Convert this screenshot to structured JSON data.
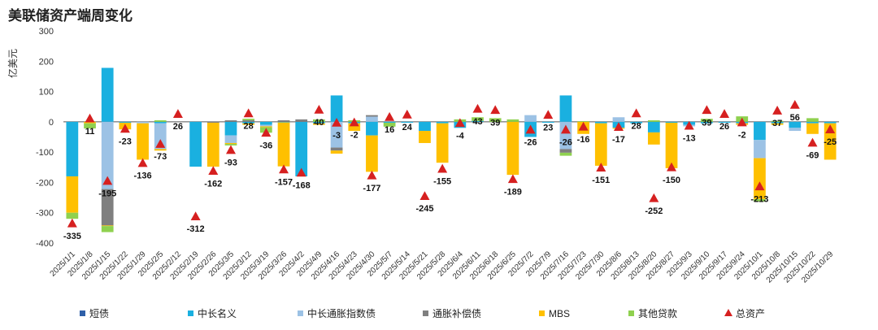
{
  "chart_data": {
    "type": "bar",
    "title": "美联储资产端周变化",
    "ylabel": "亿美元",
    "ylim": [
      -400,
      300
    ],
    "yticks": [
      300,
      200,
      100,
      0,
      -100,
      -200,
      -300,
      -400
    ],
    "grid": false,
    "legend_position": "bottom",
    "stacked": true,
    "categories": [
      "2025/1/1",
      "2025/1/8",
      "2025/1/15",
      "2025/1/22",
      "2025/1/29",
      "2025/2/5",
      "2025/2/12",
      "2025/2/19",
      "2025/2/26",
      "2025/3/5",
      "2025/3/12",
      "2025/3/19",
      "2025/3/26",
      "2025/4/2",
      "2025/4/9",
      "2025/4/16",
      "2025/4/23",
      "2025/4/30",
      "2025/5/7",
      "2025/5/14",
      "2025/5/21",
      "2025/5/28",
      "2025/6/4",
      "2025/6/11",
      "2025/6/18",
      "2025/6/25",
      "2025/7/2",
      "2025/7/9",
      "2025/7/16",
      "2025/7/23",
      "2025/7/30",
      "2025/8/6",
      "2025/8/13",
      "2025/8/20",
      "2025/8/27",
      "2025/9/3",
      "2025/9/10",
      "2025/9/17",
      "2025/9/24",
      "2025/10/1",
      "2025/10/8",
      "2025/10/15",
      "2025/10/22",
      "2025/10/29"
    ],
    "xtick_labels": [
      "2025/1/1",
      "2025/1/8",
      "2025/1/15",
      "2025/1/22",
      "2025/1/29",
      "2025/2/5",
      "2025/2/12",
      "2025/2/19",
      "2025/2/26",
      "2025/3/5",
      "2025/3/12",
      "2025/3/19",
      "2025/3/26",
      "2025/4/2",
      "2025/4/9",
      "2025/4/16",
      "2025/4/23",
      "2025/4/30",
      "2025/5/7",
      "2025/5/14",
      "2025/5/21",
      "2025/5/28",
      "2025/6/4",
      "2025/6/11",
      "2025/6/18",
      "2025/6/25",
      "2025/7/2",
      "2025/7/9",
      "2025/7/16",
      "2025/7/23",
      "2025/7/30",
      "2025/8/6",
      "2025/8/13",
      "2025/8/20",
      "2025/8/27",
      "2025/9/3",
      "2025/9/10",
      "2025/9/17",
      "2025/9/24",
      "2025/10/1",
      "2025/10/8",
      "2025/10/15",
      "2025/10/22",
      "2025/10/29"
    ],
    "series": [
      {
        "name": "短债",
        "color": "#2e5fa8",
        "values": [
          0,
          0,
          0,
          0,
          0,
          0,
          0,
          0,
          0,
          0,
          0,
          0,
          0,
          0,
          0,
          0,
          0,
          0,
          0,
          0,
          0,
          0,
          0,
          0,
          0,
          0,
          0,
          0,
          0,
          0,
          0,
          0,
          0,
          0,
          0,
          0,
          0,
          0,
          0,
          0,
          0,
          0,
          0,
          0
        ]
      },
      {
        "name": "中长名义",
        "color": "#1ab0e0",
        "values": [
          -180,
          0,
          178,
          -3,
          0,
          -5,
          0,
          -148,
          0,
          -45,
          -5,
          -10,
          -2,
          -180,
          -5,
          87,
          -5,
          -45,
          -3,
          -3,
          -30,
          -5,
          -20,
          3,
          0,
          0,
          -50,
          -3,
          87,
          0,
          -5,
          -20,
          -5,
          -35,
          -3,
          -10,
          -5,
          -3,
          -5,
          -60,
          -5,
          -20,
          -5,
          -5
        ]
      },
      {
        "name": "中长通胀指数债",
        "color": "#9cc2e5",
        "values": [
          0,
          0,
          -222,
          0,
          -5,
          -85,
          0,
          0,
          0,
          -25,
          0,
          -5,
          0,
          0,
          0,
          -85,
          0,
          17,
          0,
          0,
          0,
          0,
          0,
          0,
          0,
          0,
          22,
          0,
          -90,
          0,
          0,
          15,
          0,
          0,
          0,
          -5,
          0,
          0,
          0,
          -60,
          0,
          -10,
          0,
          0
        ]
      },
      {
        "name": "通胀补偿债",
        "color": "#7f7f7f",
        "values": [
          0,
          0,
          -120,
          0,
          0,
          0,
          0,
          0,
          -3,
          5,
          5,
          0,
          5,
          8,
          0,
          -10,
          0,
          5,
          0,
          0,
          0,
          0,
          0,
          0,
          0,
          0,
          0,
          0,
          -12,
          0,
          0,
          0,
          0,
          0,
          0,
          0,
          0,
          0,
          0,
          0,
          0,
          0,
          0,
          0
        ]
      },
      {
        "name": "MBS",
        "color": "#ffc000",
        "values": [
          -120,
          -5,
          -2,
          -22,
          -120,
          -5,
          0,
          0,
          -145,
          -3,
          -5,
          -3,
          -145,
          0,
          -5,
          -10,
          -25,
          -120,
          0,
          0,
          -40,
          -130,
          0,
          0,
          0,
          -175,
          0,
          0,
          0,
          -40,
          -140,
          -3,
          0,
          -40,
          -150,
          0,
          0,
          0,
          -5,
          -135,
          -5,
          0,
          -35,
          -120
        ]
      },
      {
        "name": "其他贷款",
        "color": "#8fd14f",
        "values": [
          -20,
          -17,
          -20,
          0,
          0,
          5,
          0,
          0,
          0,
          -5,
          5,
          -18,
          0,
          0,
          8,
          0,
          5,
          0,
          -13,
          0,
          0,
          0,
          8,
          12,
          12,
          8,
          0,
          0,
          -10,
          2,
          0,
          0,
          0,
          5,
          0,
          0,
          10,
          0,
          18,
          -8,
          3,
          0,
          12,
          0
        ]
      }
    ],
    "total": {
      "name": "总资产",
      "color": "#d62020",
      "values": [
        -335,
        11,
        -195,
        -23,
        -136,
        -73,
        26,
        -312,
        -162,
        -93,
        28,
        -36,
        -157,
        -168,
        40,
        -3,
        -2,
        -177,
        16,
        24,
        -245,
        -155,
        -4,
        43,
        39,
        -189,
        -26,
        23,
        -26,
        -16,
        -151,
        -17,
        28,
        -252,
        -150,
        -13,
        39,
        26,
        -2,
        -213,
        37,
        56,
        -69,
        -25
      ]
    },
    "data_labels": [
      "-335",
      "11",
      "-195",
      "-23",
      "-136",
      "-73",
      "26",
      "-312",
      "-162",
      "-93",
      "28",
      "-36",
      "-157",
      "-168",
      "40",
      "-3",
      "-2",
      "-177",
      "16",
      "24",
      "-245",
      "-155",
      "-4",
      "43",
      "39",
      "-189",
      "-26",
      "23",
      "-26",
      "-16",
      "-151",
      "-17",
      "28",
      "-252",
      "-150",
      "-13",
      "39",
      "26",
      "-2",
      "-213",
      "37",
      "56",
      "-69",
      "-25"
    ]
  }
}
